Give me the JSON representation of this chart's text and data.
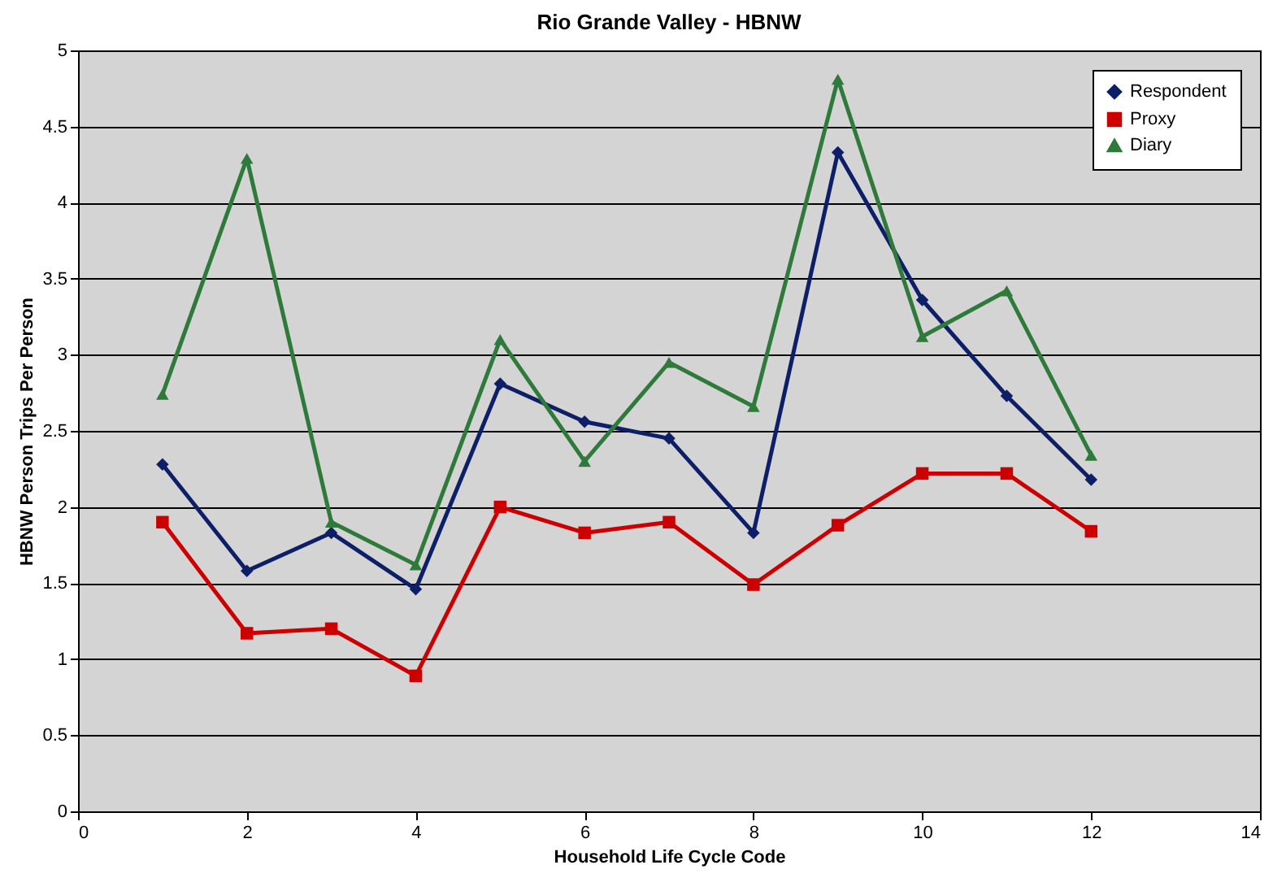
{
  "chart_data": {
    "type": "line",
    "title": "Rio Grande Valley - HBNW",
    "xlabel": "Household Life Cycle Code",
    "ylabel": "HBNW Person Trips Per Person",
    "x": [
      1,
      2,
      3,
      4,
      5,
      6,
      7,
      8,
      9,
      10,
      11,
      12
    ],
    "xlim": [
      0,
      14
    ],
    "xticks": [
      0,
      2,
      4,
      6,
      8,
      10,
      12,
      14
    ],
    "ylim": [
      0,
      5
    ],
    "yticks": [
      0,
      0.5,
      1,
      1.5,
      2,
      2.5,
      3,
      3.5,
      4,
      4.5,
      5
    ],
    "grid": "y",
    "legend": "top right",
    "line_style": "solid",
    "series": [
      {
        "name": "Respondent",
        "color": "#0d1f66",
        "marker": "diamond",
        "values": [
          2.28,
          1.58,
          1.83,
          1.46,
          2.81,
          2.56,
          2.45,
          1.83,
          4.33,
          3.36,
          2.73,
          2.18
        ]
      },
      {
        "name": "Proxy",
        "color": "#cc0000",
        "marker": "square",
        "values": [
          1.9,
          1.17,
          1.2,
          0.89,
          2.0,
          1.83,
          1.9,
          1.49,
          1.88,
          2.22,
          2.22,
          1.84
        ]
      },
      {
        "name": "Diary",
        "color": "#2e7a3a",
        "marker": "triangle",
        "values": [
          2.74,
          4.29,
          1.9,
          1.62,
          3.1,
          2.3,
          2.95,
          2.66,
          4.81,
          3.12,
          3.42,
          2.34
        ]
      }
    ]
  }
}
